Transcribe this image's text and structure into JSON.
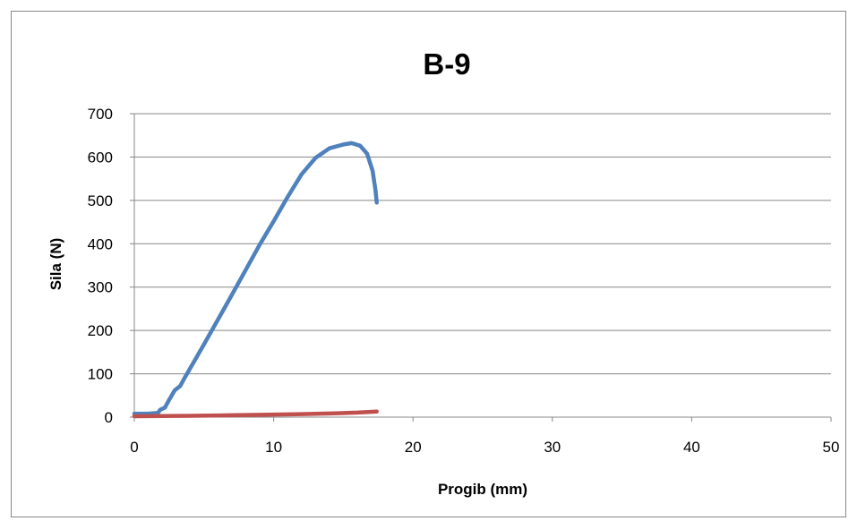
{
  "chart_data": {
    "type": "line",
    "title": "B-9",
    "xlabel": "Progib (mm)",
    "ylabel": "Sila (N)",
    "xlim": [
      0,
      50
    ],
    "ylim": [
      0,
      700
    ],
    "x_ticks": [
      0,
      10,
      20,
      30,
      40,
      50
    ],
    "y_ticks": [
      0,
      100,
      200,
      300,
      400,
      500,
      600,
      700
    ],
    "grid": "horizontal",
    "legend": "none",
    "series": [
      {
        "color": "#4f81bd",
        "points": [
          [
            0,
            8
          ],
          [
            1.0,
            8
          ],
          [
            1.7,
            10
          ],
          [
            1.85,
            17
          ],
          [
            2.2,
            22
          ],
          [
            2.5,
            40
          ],
          [
            2.9,
            62
          ],
          [
            3.3,
            72
          ],
          [
            3.6,
            90
          ],
          [
            4,
            112
          ],
          [
            5,
            168
          ],
          [
            6,
            225
          ],
          [
            7,
            282
          ],
          [
            8,
            340
          ],
          [
            9,
            398
          ],
          [
            10,
            452
          ],
          [
            11,
            508
          ],
          [
            12,
            560
          ],
          [
            13,
            598
          ],
          [
            14,
            620
          ],
          [
            15,
            629
          ],
          [
            15.6,
            632
          ],
          [
            16.2,
            626
          ],
          [
            16.7,
            608
          ],
          [
            17.1,
            568
          ],
          [
            17.3,
            525
          ],
          [
            17.4,
            495
          ]
        ]
      },
      {
        "color": "#c0504d",
        "points": [
          [
            0,
            2
          ],
          [
            2,
            2.5
          ],
          [
            4,
            3
          ],
          [
            6,
            4
          ],
          [
            8,
            5
          ],
          [
            10,
            6
          ],
          [
            12,
            7
          ],
          [
            14,
            8.5
          ],
          [
            16,
            10.5
          ],
          [
            17.4,
            13
          ]
        ]
      }
    ]
  }
}
